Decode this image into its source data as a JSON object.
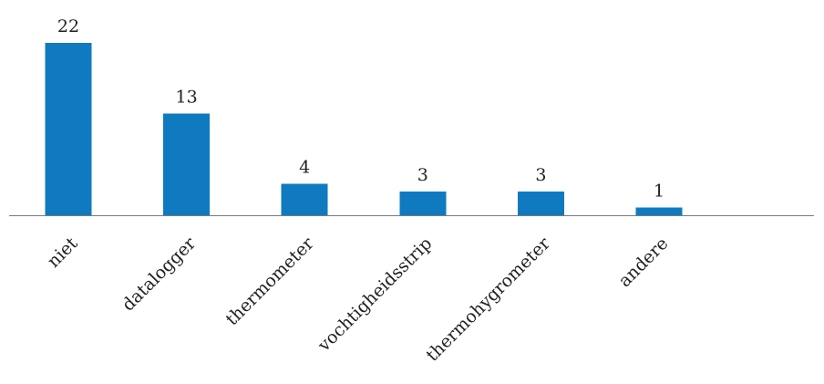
{
  "chart_data": {
    "type": "bar",
    "categories": [
      "niet",
      "datalogger",
      "thermometer",
      "vochtigheidsstrip",
      "thermohygrometer",
      "andere"
    ],
    "values": [
      22,
      13,
      4,
      3,
      3,
      1
    ],
    "data_labels": [
      "22",
      "13",
      "4",
      "3",
      "3",
      "1"
    ],
    "title": "",
    "xlabel": "",
    "ylabel": "",
    "ylim": [
      0,
      22
    ],
    "grid": false,
    "legend": "none",
    "bar_color": "#0f7ac0",
    "axis_color": "#7a7a7a",
    "text_color": "#222222"
  }
}
